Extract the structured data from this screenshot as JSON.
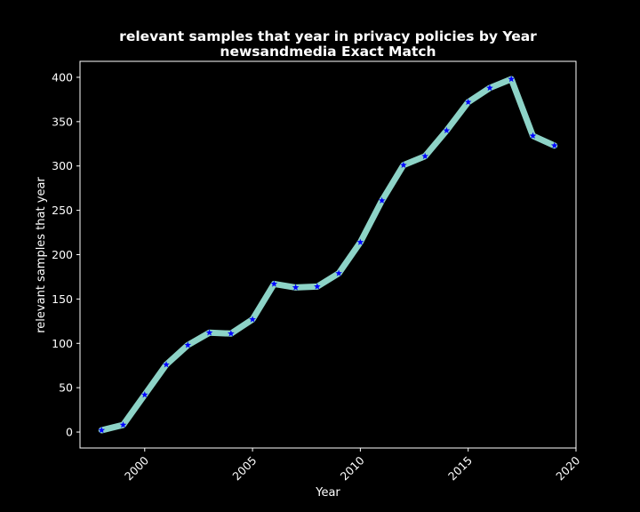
{
  "chart_data": {
    "type": "line",
    "title": "relevant samples that year in privacy policies by Year",
    "subtitle": "newsandmedia Exact Match",
    "xlabel": "Year",
    "ylabel": "relevant samples that year",
    "xlim": [
      1997.0,
      2020.0
    ],
    "ylim": [
      -18,
      418
    ],
    "xticks": [
      2000,
      2005,
      2010,
      2015,
      2020
    ],
    "yticks": [
      0,
      50,
      100,
      150,
      200,
      250,
      300,
      350,
      400
    ],
    "grid": false,
    "legend": "none",
    "line_color": "#8dd3c7",
    "marker_color": "#0000ff",
    "marker": "star",
    "series": [
      {
        "x": [
          1998,
          1999,
          2000,
          2001,
          2002,
          2003,
          2004,
          2005,
          2006,
          2007,
          2008,
          2009,
          2010,
          2011,
          2012,
          2013,
          2014,
          2015,
          2016,
          2017,
          2018,
          2019
        ],
        "values": [
          2,
          8,
          42,
          76,
          98,
          112,
          111,
          127,
          167,
          163,
          164,
          179,
          214,
          261,
          301,
          311,
          340,
          372,
          388,
          398,
          334,
          323
        ]
      }
    ]
  }
}
